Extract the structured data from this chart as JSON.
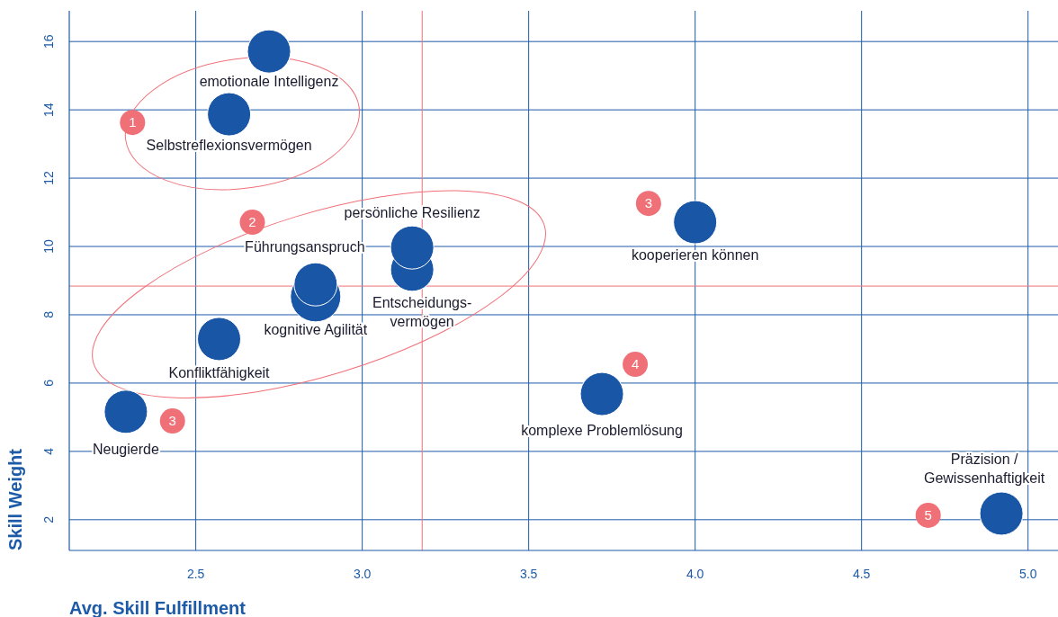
{
  "chart_data": {
    "type": "scatter",
    "xlabel": "Avg. Skill Fulfillment",
    "ylabel": "Skill Weight",
    "xlim": [
      2.12,
      5.09
    ],
    "xticks": [
      2.5,
      {
        "value": 3,
        "label": "3.0"
      },
      3.5,
      {
        "value": 4,
        "label": "4.0"
      },
      4.5,
      {
        "value": 5,
        "label": "5.0"
      }
    ],
    "ylim": [
      1.1,
      16.9
    ],
    "yticks": [
      2,
      4,
      6,
      8,
      10,
      12,
      14,
      16
    ],
    "grid": true,
    "marker": "circle",
    "series": [
      {
        "name": "emotionale Intelligenz",
        "color": "#1a56a6",
        "x": [
          2.72
        ],
        "values": [
          15.71
        ]
      },
      {
        "name": "Selbstreflexionsvermögen",
        "color": "#1a56a6",
        "x": [
          2.6
        ],
        "values": [
          13.87
        ]
      },
      {
        "name": "Entscheidungs-\nvermögen",
        "color": "#1a56a6",
        "x": [
          3.15
        ],
        "values": [
          9.32
        ]
      },
      {
        "name": "persönliche Resilienz",
        "color": "#1a56a6",
        "x": [
          3.15
        ],
        "values": [
          9.97
        ]
      },
      {
        "name": "kognitive Agilität",
        "color": "#1a56a6",
        "x": [
          2.86
        ],
        "values": [
          8.53
        ]
      },
      {
        "name": "Führungsanspruch",
        "color": "#1a56a6",
        "x": [
          2.86
        ],
        "values": [
          8.89
        ]
      },
      {
        "name": "Konfliktfähigkeit",
        "color": "#1a56a6",
        "x": [
          2.57
        ],
        "values": [
          7.29
        ]
      },
      {
        "name": "Neugierde",
        "color": "#1a56a6",
        "x": [
          2.29
        ],
        "values": [
          5.16
        ]
      },
      {
        "name": "kooperieren können",
        "color": "#1a56a6",
        "x": [
          4.0
        ],
        "values": [
          10.71
        ]
      },
      {
        "name": "komplexe Problemlösung",
        "color": "#1a56a6",
        "x": [
          3.72
        ],
        "values": [
          5.68
        ]
      },
      {
        "name": "Präzision /\nGewissenhaftigkeit",
        "color": "#1a56a6",
        "x": [
          4.92
        ],
        "values": [
          2.18
        ]
      }
    ],
    "ref_lines": [
      {
        "axis": "x",
        "value": 3.18,
        "color": "#f07078"
      },
      {
        "axis": "y",
        "value": 8.84,
        "color": "#f07078"
      }
    ],
    "annotations": [
      {
        "text": "1",
        "x": 2.31,
        "y": 13.63
      },
      {
        "text": "2",
        "x": 2.67,
        "y": 10.71
      },
      {
        "text": "3",
        "x": 3.86,
        "y": 11.26
      },
      {
        "text": "3",
        "x": 2.43,
        "y": 4.89
      },
      {
        "text": "4",
        "x": 3.82,
        "y": 6.55
      },
      {
        "text": "5",
        "x": 4.7,
        "y": 2.13
      }
    ]
  }
}
